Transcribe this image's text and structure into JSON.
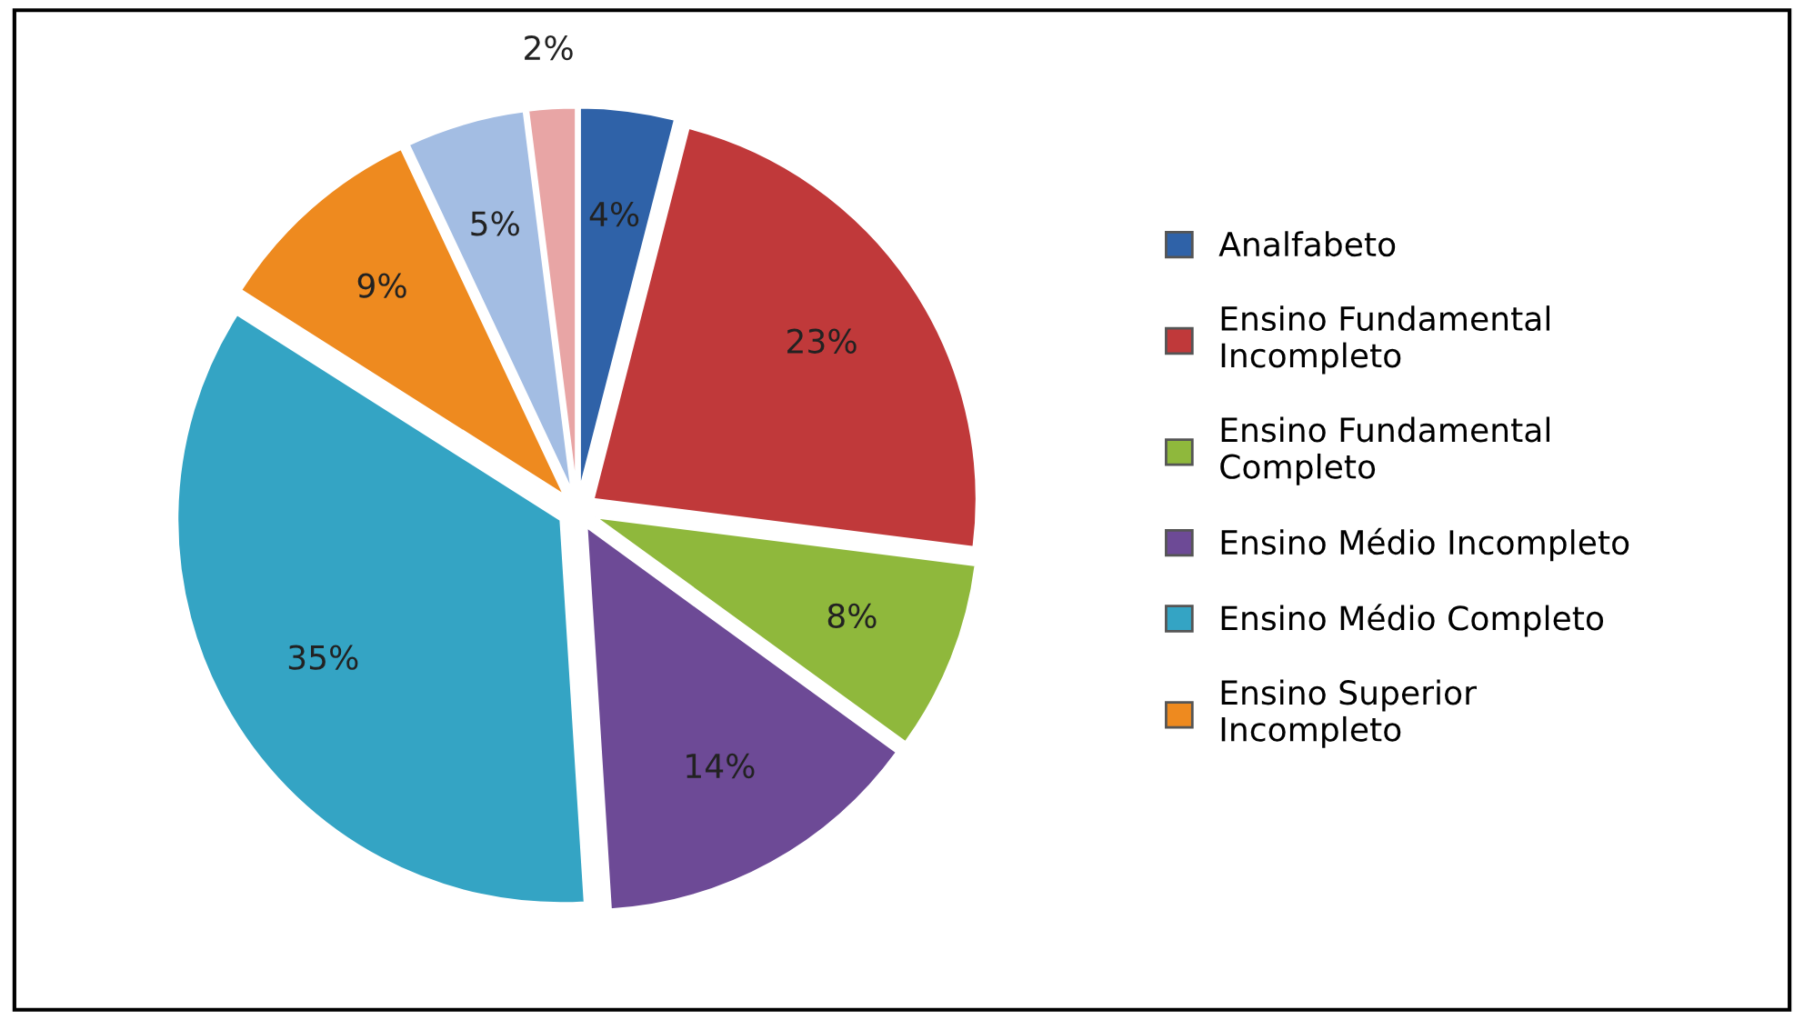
{
  "chart_data": {
    "type": "pie",
    "categories": [
      "Analfabeto",
      "Ensino Fundamental Incompleto",
      "Ensino Fundamental Completo",
      "Ensino Médio Incompleto",
      "Ensino Médio Completo",
      "Ensino Superior Incompleto",
      null,
      null
    ],
    "values": [
      4,
      23,
      8,
      14,
      35,
      9,
      5,
      2
    ],
    "colors": [
      "#2f62a8",
      "#c0393a",
      "#8fb83c",
      "#6d4a96",
      "#34a4c4",
      "#ee8a1f",
      "#a3bde3",
      "#e8a5a5"
    ],
    "value_labels": [
      "4%",
      "23%",
      "8%",
      "14%",
      "35%",
      "9%",
      "5%",
      "2%"
    ],
    "legend": "right"
  }
}
